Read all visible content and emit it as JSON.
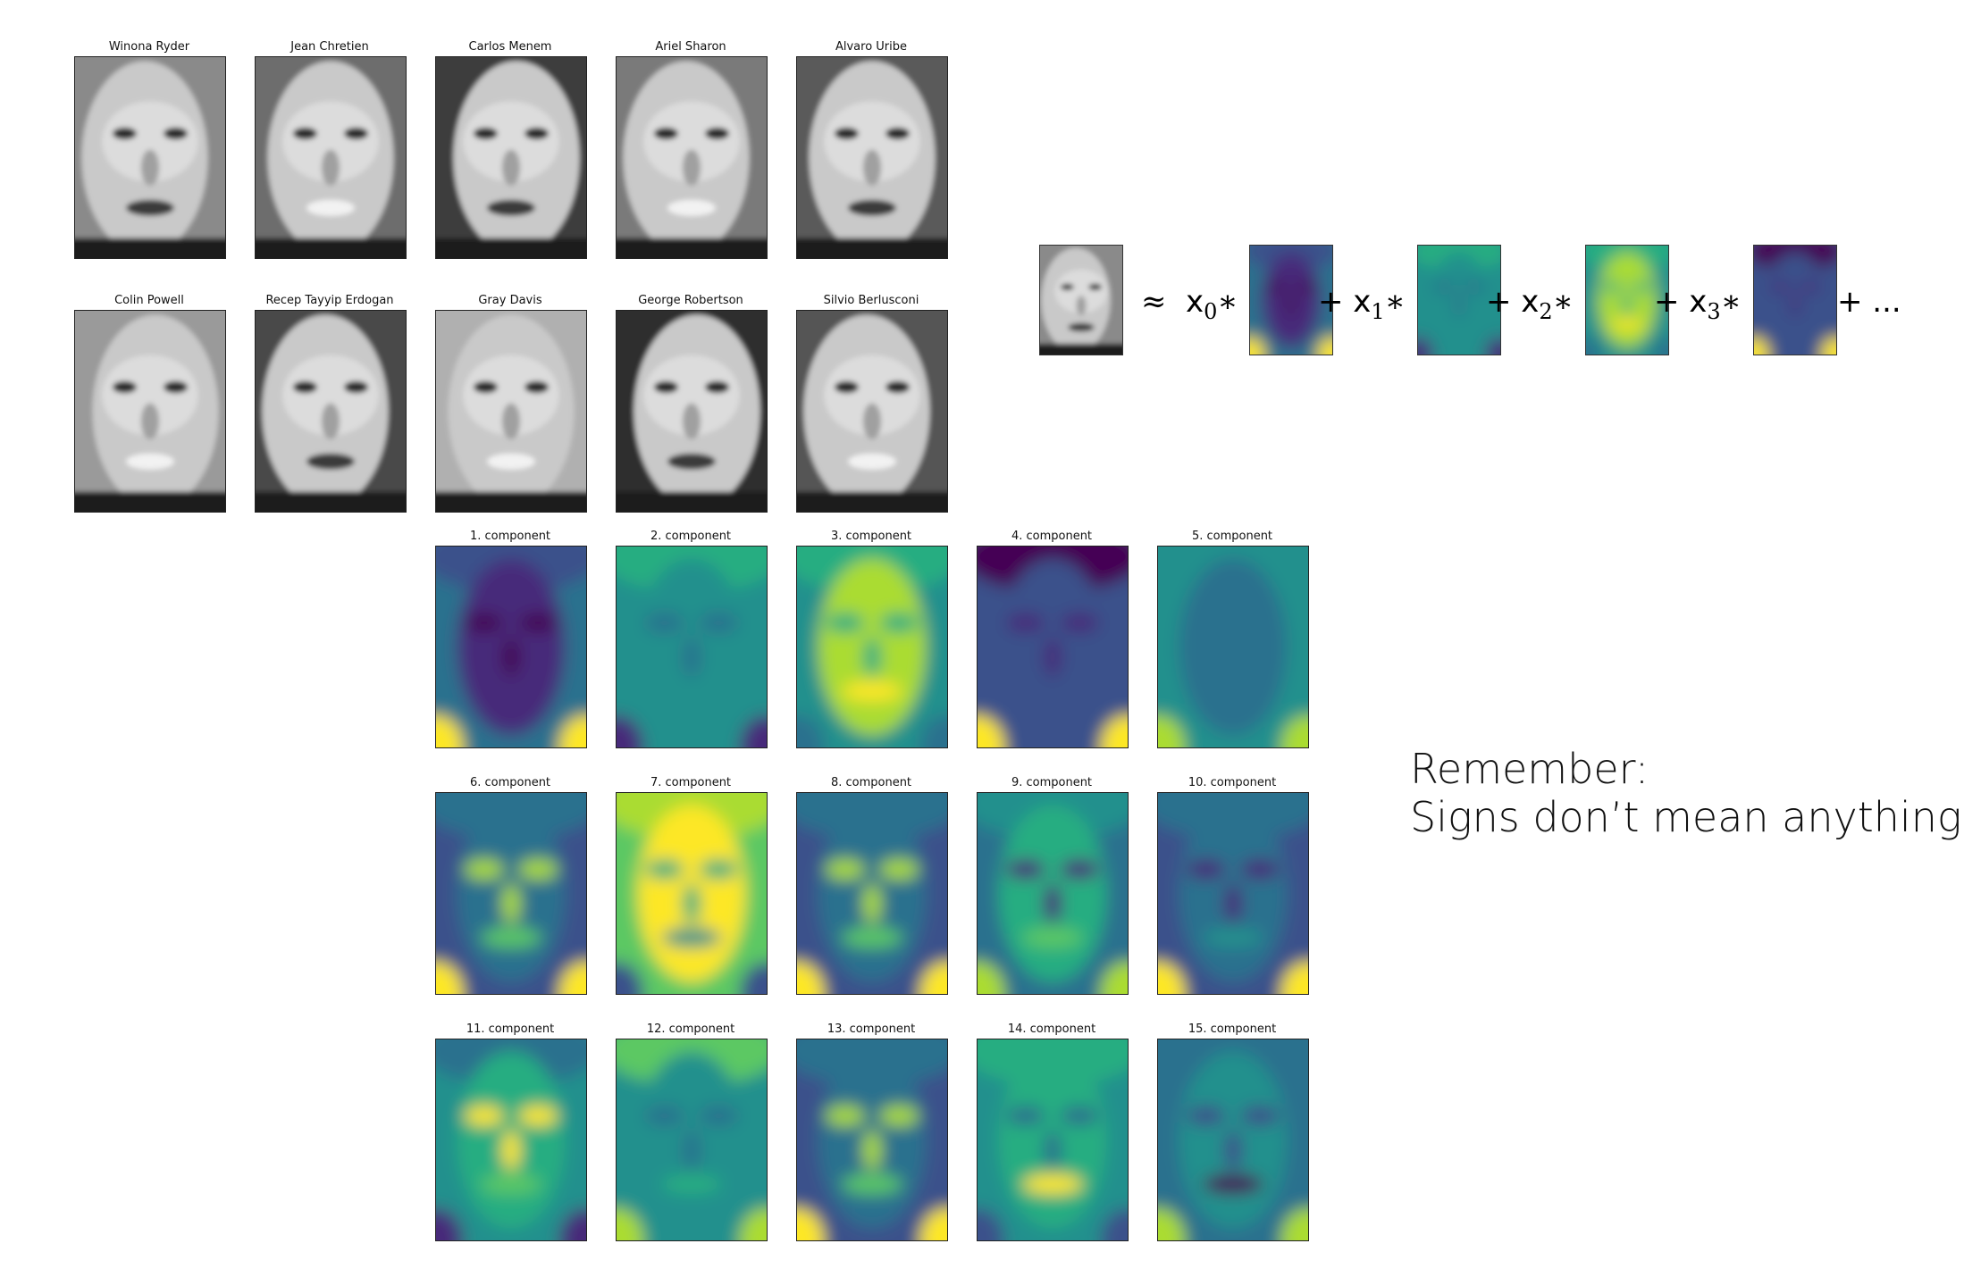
{
  "faces": [
    {
      "name": "Winona Ryder"
    },
    {
      "name": "Jean Chretien"
    },
    {
      "name": "Carlos Menem"
    },
    {
      "name": "Ariel Sharon"
    },
    {
      "name": "Alvaro Uribe"
    },
    {
      "name": "Colin Powell"
    },
    {
      "name": "Recep Tayyip Erdogan"
    },
    {
      "name": "Gray Davis"
    },
    {
      "name": "George Robertson"
    },
    {
      "name": "Silvio Berlusconi"
    }
  ],
  "components": [
    {
      "label": "1. component",
      "pattern": "dark-face"
    },
    {
      "label": "2. component",
      "pattern": "flat-green"
    },
    {
      "label": "3. component",
      "pattern": "bright-face"
    },
    {
      "label": "4. component",
      "pattern": "dark-top"
    },
    {
      "label": "5. component",
      "pattern": "teal-flat"
    },
    {
      "label": "6. component",
      "pattern": "eyes-band"
    },
    {
      "label": "7. component",
      "pattern": "yellow-face"
    },
    {
      "label": "8. component",
      "pattern": "eyes-band"
    },
    {
      "label": "9. component",
      "pattern": "side-light"
    },
    {
      "label": "10. component",
      "pattern": "nose-dark"
    },
    {
      "label": "11. component",
      "pattern": "eyes-spot"
    },
    {
      "label": "12. component",
      "pattern": "outline"
    },
    {
      "label": "13. component",
      "pattern": "eyes-band"
    },
    {
      "label": "14. component",
      "pattern": "mouth-band"
    },
    {
      "label": "15. component",
      "pattern": "contrast"
    }
  ],
  "equation": {
    "approx": "≈",
    "var": "x",
    "times": "∗",
    "plus": "+",
    "ellipsis": "+ ...",
    "subscripts": [
      "0",
      "1",
      "2",
      "3"
    ]
  },
  "note": {
    "line1": "Remember:",
    "line2": "Signs don’t mean anything!"
  },
  "colors": {
    "viridis": [
      "#440154",
      "#472c7a",
      "#3b518b",
      "#2c718e",
      "#21908d",
      "#27ad81",
      "#5cc863",
      "#aadc32",
      "#fde725"
    ],
    "grayscale": [
      "#111111",
      "#ffffff"
    ]
  }
}
